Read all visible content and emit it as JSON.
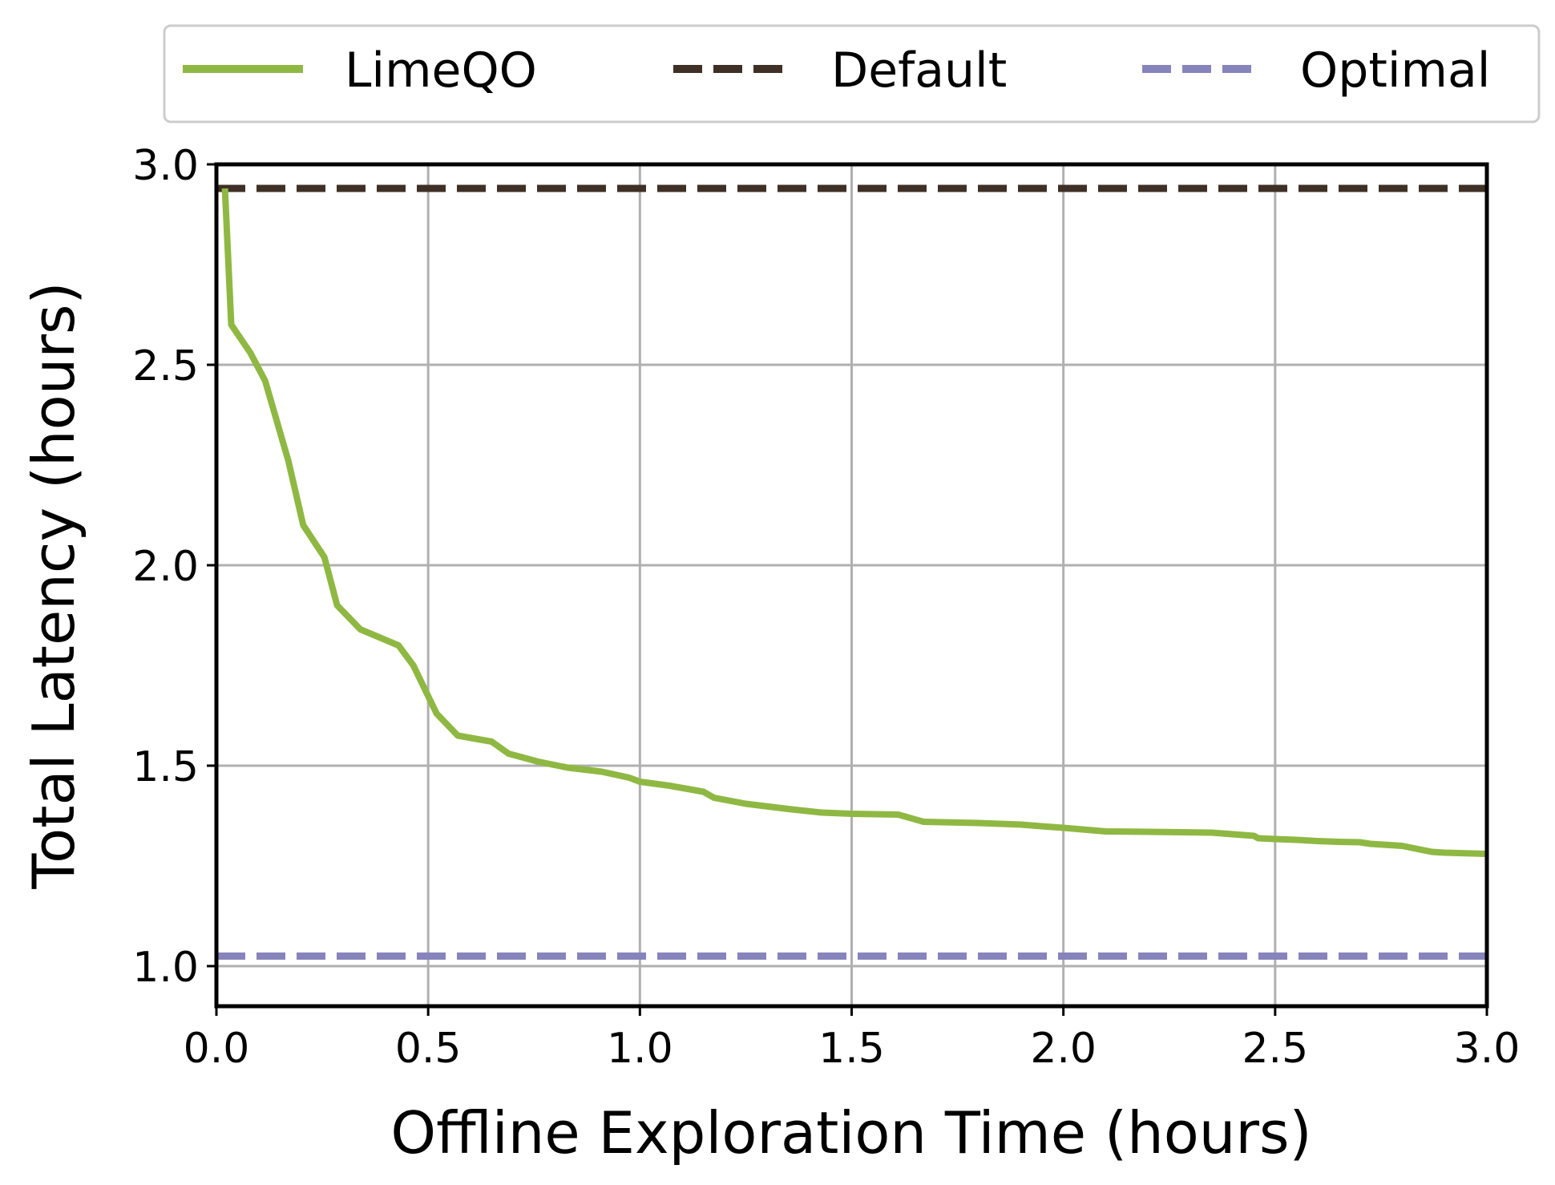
{
  "chart_data": {
    "type": "line",
    "title": "",
    "xlabel": "Offline Exploration Time (hours)",
    "ylabel": "Total Latency (hours)",
    "xlim": [
      0.0,
      3.0
    ],
    "ylim": [
      0.9,
      3.0
    ],
    "xticks": [
      "0.0",
      "0.5",
      "1.0",
      "1.5",
      "2.0",
      "2.5",
      "3.0"
    ],
    "yticks": [
      "1.0",
      "1.5",
      "2.0",
      "2.5",
      "3.0"
    ],
    "grid": true,
    "legend_position": "top",
    "series": [
      {
        "name": "LimeQO",
        "style": "solid",
        "color": "#8fb843",
        "x": [
          0.02,
          0.035,
          0.08,
          0.115,
          0.17,
          0.205,
          0.255,
          0.285,
          0.34,
          0.43,
          0.465,
          0.52,
          0.57,
          0.65,
          0.69,
          0.76,
          0.83,
          0.91,
          0.975,
          1.0,
          1.07,
          1.15,
          1.175,
          1.25,
          1.35,
          1.43,
          1.5,
          1.61,
          1.67,
          1.8,
          1.9,
          1.96,
          2.0,
          2.1,
          2.2,
          2.35,
          2.45,
          2.46,
          2.5,
          2.55,
          2.6,
          2.65,
          2.7,
          2.725,
          2.8,
          2.87,
          2.9,
          3.0
        ],
        "y": [
          2.94,
          2.6,
          2.53,
          2.46,
          2.26,
          2.1,
          2.02,
          1.9,
          1.84,
          1.8,
          1.75,
          1.63,
          1.575,
          1.56,
          1.53,
          1.51,
          1.495,
          1.485,
          1.47,
          1.46,
          1.45,
          1.435,
          1.42,
          1.405,
          1.392,
          1.383,
          1.38,
          1.378,
          1.36,
          1.357,
          1.353,
          1.348,
          1.345,
          1.336,
          1.335,
          1.333,
          1.325,
          1.319,
          1.317,
          1.315,
          1.312,
          1.31,
          1.309,
          1.305,
          1.3,
          1.285,
          1.283,
          1.28
        ]
      },
      {
        "name": "Default",
        "style": "dashed",
        "color": "#3f3026",
        "x": [
          0.0,
          3.0
        ],
        "y": [
          2.94,
          2.94
        ]
      },
      {
        "name": "Optimal",
        "style": "dashed",
        "color": "#8784bb",
        "x": [
          0.0,
          3.0
        ],
        "y": [
          1.025,
          1.025
        ]
      }
    ]
  }
}
